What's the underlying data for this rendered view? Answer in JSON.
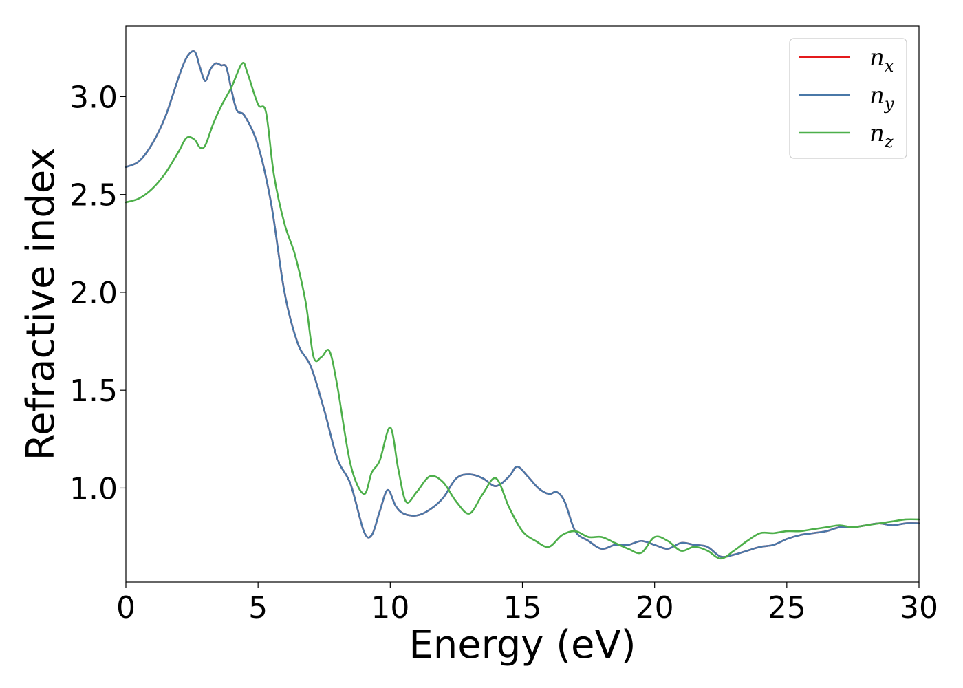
{
  "chart_data": {
    "type": "line",
    "title": "",
    "xlabel": "Energy (eV)",
    "ylabel": "Refractive index",
    "xlim": [
      0,
      30
    ],
    "ylim": [
      0.52,
      3.36
    ],
    "xticks": [
      0,
      5,
      10,
      15,
      20,
      25,
      30
    ],
    "xtick_labels": [
      "0",
      "5",
      "10",
      "15",
      "20",
      "25",
      "30"
    ],
    "yticks": [
      1.0,
      1.5,
      2.0,
      2.5,
      3.0
    ],
    "ytick_labels": [
      "1.0",
      "1.5",
      "2.0",
      "2.5",
      "3.0"
    ],
    "grid": false,
    "legend_position": "top-right",
    "series": [
      {
        "name": "n_x",
        "color": "#e41a1c",
        "x": [
          0,
          0.5,
          1.0,
          1.5,
          2.0,
          2.3,
          2.6,
          2.8,
          3.0,
          3.2,
          3.4,
          3.6,
          3.8,
          4.0,
          4.2,
          4.5,
          5.0,
          5.5,
          6.0,
          6.5,
          7.0,
          7.5,
          8.0,
          8.5,
          9.0,
          9.3,
          9.6,
          9.9,
          10.2,
          10.5,
          11.0,
          11.5,
          12.0,
          12.5,
          13.0,
          13.5,
          14.0,
          14.5,
          14.8,
          15.2,
          15.6,
          16.0,
          16.3,
          16.6,
          17.0,
          17.5,
          18.0,
          18.5,
          19.0,
          19.5,
          20.0,
          20.5,
          21.0,
          21.5,
          22.0,
          22.5,
          23.0,
          23.5,
          24.0,
          24.5,
          25.0,
          25.5,
          26.0,
          26.5,
          27.0,
          27.5,
          28.0,
          28.5,
          29.0,
          29.5,
          30.0
        ],
        "y": [
          2.64,
          2.67,
          2.76,
          2.9,
          3.1,
          3.2,
          3.23,
          3.15,
          3.08,
          3.14,
          3.17,
          3.16,
          3.15,
          3.03,
          2.93,
          2.9,
          2.75,
          2.45,
          2.0,
          1.74,
          1.62,
          1.4,
          1.15,
          1.02,
          0.78,
          0.76,
          0.88,
          0.99,
          0.91,
          0.87,
          0.86,
          0.89,
          0.95,
          1.05,
          1.07,
          1.05,
          1.01,
          1.06,
          1.11,
          1.06,
          1.0,
          0.97,
          0.98,
          0.93,
          0.78,
          0.73,
          0.69,
          0.71,
          0.71,
          0.73,
          0.71,
          0.69,
          0.72,
          0.71,
          0.7,
          0.65,
          0.66,
          0.68,
          0.7,
          0.71,
          0.74,
          0.76,
          0.77,
          0.78,
          0.8,
          0.8,
          0.81,
          0.82,
          0.81,
          0.82,
          0.82
        ]
      },
      {
        "name": "n_y",
        "color": "#4a78a8",
        "x": [
          0,
          0.5,
          1.0,
          1.5,
          2.0,
          2.3,
          2.6,
          2.8,
          3.0,
          3.2,
          3.4,
          3.6,
          3.8,
          4.0,
          4.2,
          4.5,
          5.0,
          5.5,
          6.0,
          6.5,
          7.0,
          7.5,
          8.0,
          8.5,
          9.0,
          9.3,
          9.6,
          9.9,
          10.2,
          10.5,
          11.0,
          11.5,
          12.0,
          12.5,
          13.0,
          13.5,
          14.0,
          14.5,
          14.8,
          15.2,
          15.6,
          16.0,
          16.3,
          16.6,
          17.0,
          17.5,
          18.0,
          18.5,
          19.0,
          19.5,
          20.0,
          20.5,
          21.0,
          21.5,
          22.0,
          22.5,
          23.0,
          23.5,
          24.0,
          24.5,
          25.0,
          25.5,
          26.0,
          26.5,
          27.0,
          27.5,
          28.0,
          28.5,
          29.0,
          29.5,
          30.0
        ],
        "y": [
          2.64,
          2.67,
          2.76,
          2.9,
          3.1,
          3.2,
          3.23,
          3.15,
          3.08,
          3.14,
          3.17,
          3.16,
          3.15,
          3.03,
          2.93,
          2.9,
          2.75,
          2.45,
          2.0,
          1.74,
          1.62,
          1.4,
          1.15,
          1.02,
          0.78,
          0.76,
          0.88,
          0.99,
          0.91,
          0.87,
          0.86,
          0.89,
          0.95,
          1.05,
          1.07,
          1.05,
          1.01,
          1.06,
          1.11,
          1.06,
          1.0,
          0.97,
          0.98,
          0.93,
          0.78,
          0.73,
          0.69,
          0.71,
          0.71,
          0.73,
          0.71,
          0.69,
          0.72,
          0.71,
          0.7,
          0.65,
          0.66,
          0.68,
          0.7,
          0.71,
          0.74,
          0.76,
          0.77,
          0.78,
          0.8,
          0.8,
          0.81,
          0.82,
          0.81,
          0.82,
          0.82
        ]
      },
      {
        "name": "n_z",
        "color": "#4daf4a",
        "x": [
          0,
          0.5,
          1.0,
          1.5,
          2.0,
          2.3,
          2.6,
          2.8,
          3.0,
          3.3,
          3.6,
          4.0,
          4.4,
          4.6,
          5.0,
          5.3,
          5.6,
          6.0,
          6.4,
          6.8,
          7.1,
          7.4,
          7.7,
          8.0,
          8.5,
          9.0,
          9.3,
          9.6,
          10.0,
          10.3,
          10.6,
          11.0,
          11.5,
          12.0,
          12.5,
          13.0,
          13.5,
          14.0,
          14.5,
          15.0,
          15.5,
          16.0,
          16.5,
          17.0,
          17.5,
          18.0,
          18.5,
          19.0,
          19.5,
          20.0,
          20.5,
          21.0,
          21.5,
          22.0,
          22.5,
          23.0,
          23.5,
          24.0,
          24.5,
          25.0,
          25.5,
          26.0,
          26.5,
          27.0,
          27.5,
          28.0,
          28.5,
          29.0,
          29.5,
          30.0
        ],
        "y": [
          2.46,
          2.48,
          2.53,
          2.61,
          2.72,
          2.79,
          2.78,
          2.74,
          2.75,
          2.86,
          2.95,
          3.05,
          3.17,
          3.12,
          2.96,
          2.92,
          2.6,
          2.35,
          2.19,
          1.95,
          1.67,
          1.67,
          1.7,
          1.52,
          1.12,
          0.97,
          1.08,
          1.14,
          1.31,
          1.1,
          0.93,
          0.98,
          1.06,
          1.03,
          0.93,
          0.87,
          0.97,
          1.05,
          0.9,
          0.78,
          0.73,
          0.7,
          0.76,
          0.78,
          0.75,
          0.75,
          0.72,
          0.69,
          0.67,
          0.75,
          0.73,
          0.68,
          0.7,
          0.68,
          0.64,
          0.68,
          0.73,
          0.77,
          0.77,
          0.78,
          0.78,
          0.79,
          0.8,
          0.81,
          0.8,
          0.81,
          0.82,
          0.83,
          0.84,
          0.84
        ]
      }
    ]
  },
  "legend": {
    "items": [
      {
        "base": "n",
        "sub": "x",
        "color": "#e41a1c"
      },
      {
        "base": "n",
        "sub": "y",
        "color": "#4a78a8"
      },
      {
        "base": "n",
        "sub": "z",
        "color": "#4daf4a"
      }
    ]
  }
}
